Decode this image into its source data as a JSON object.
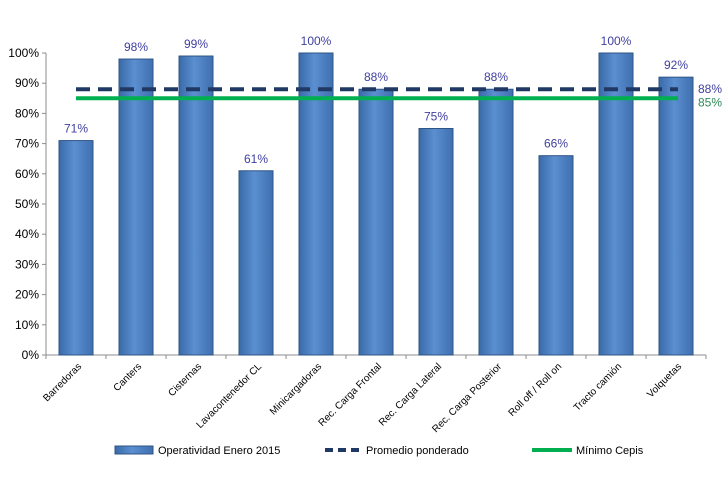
{
  "chart_data": {
    "type": "bar",
    "categories": [
      "Barredoras",
      "Canters",
      "Cisternas",
      "Lavacontenedor CL",
      "Minicargadoras",
      "Rec. Carga Frontal",
      "Rec. Carga Lateral",
      "Rec. Carga Posterior",
      "Roll off / Roll on",
      "Tracto camión",
      "Volquetas"
    ],
    "series": [
      {
        "name": "Operatividad Enero 2015",
        "type": "bar",
        "values": [
          71,
          98,
          99,
          61,
          100,
          88,
          75,
          88,
          66,
          100,
          92
        ],
        "labels": [
          "71%",
          "98%",
          "99%",
          "61%",
          "100%",
          "88%",
          "75%",
          "88%",
          "66%",
          "100%",
          "92%"
        ]
      },
      {
        "name": "Promedio ponderado",
        "type": "line",
        "style": "dashed",
        "value": 88,
        "label": "88%"
      },
      {
        "name": "Mínimo Cepis",
        "type": "line",
        "style": "solid",
        "value": 85,
        "label": "85%"
      }
    ],
    "ylim": [
      0,
      100
    ],
    "yticks": [
      "0%",
      "10%",
      "20%",
      "30%",
      "40%",
      "50%",
      "60%",
      "70%",
      "80%",
      "90%",
      "100%"
    ],
    "grid": false,
    "legend_position": "bottom",
    "colors": {
      "bar": "#4f81bd",
      "bar_label": "#4040a0",
      "average_line": "#1f3864",
      "minimum_line": "#00b050",
      "minimum_label": "#2e8b57"
    }
  }
}
